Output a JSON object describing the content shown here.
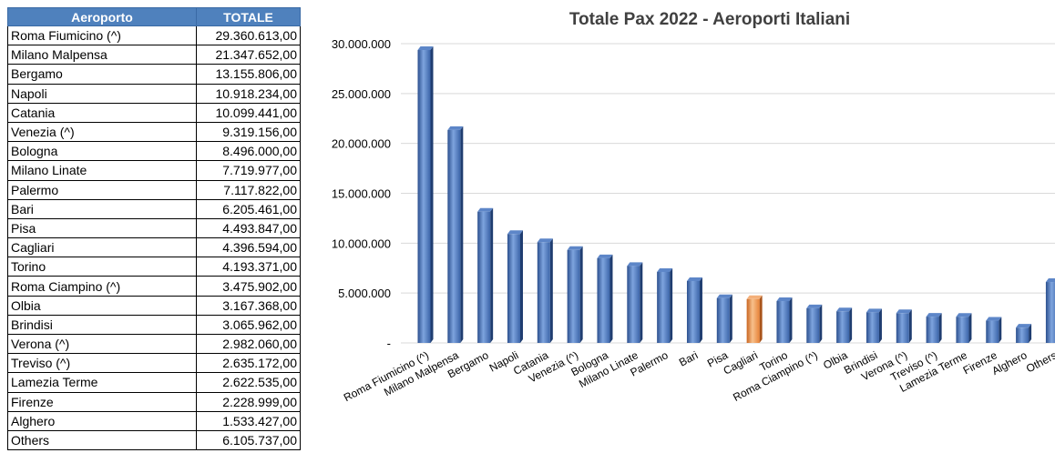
{
  "table": {
    "header_name": "Aeroporto",
    "header_value": "TOTALE",
    "value_labels": [
      "29.360.613,00",
      "21.347.652,00",
      "13.155.806,00",
      "10.918.234,00",
      "10.099.441,00",
      "9.319.156,00",
      "8.496.000,00",
      "7.719.977,00",
      "7.117.822,00",
      "6.205.461,00",
      "4.493.847,00",
      "4.396.594,00",
      "4.193.371,00",
      "3.475.902,00",
      "3.167.368,00",
      "3.065.962,00",
      "2.982.060,00",
      "2.635.172,00",
      "2.622.535,00",
      "2.228.999,00",
      "1.533.427,00",
      "6.105.737,00"
    ]
  },
  "colors": {
    "bar": "#3b64a8",
    "highlight": "#e8843a",
    "header": "#4f81bd"
  },
  "chart_data": {
    "type": "bar",
    "title": "Totale Pax 2022 - Aeroporti Italiani",
    "categories": [
      "Roma Fiumicino (^)",
      "Milano Malpensa",
      "Bergamo",
      "Napoli",
      "Catania",
      "Venezia (^)",
      "Bologna",
      "Milano Linate",
      "Palermo",
      "Bari",
      "Pisa",
      "Cagliari",
      "Torino",
      "Roma Ciampino (^)",
      "Olbia",
      "Brindisi",
      "Verona (^)",
      "Treviso (^)",
      "Lamezia Terme",
      "Firenze",
      "Alghero",
      "Others"
    ],
    "values": [
      29360613,
      21347652,
      13155806,
      10918234,
      10099441,
      9319156,
      8496000,
      7719977,
      7117822,
      6205461,
      4493847,
      4396594,
      4193371,
      3475902,
      3167368,
      3065962,
      2982060,
      2635172,
      2622535,
      2228999,
      1533427,
      6105737
    ],
    "highlighted_category": "Cagliari",
    "ylim": [
      0,
      30000000
    ],
    "yticks": [
      0,
      5000000,
      10000000,
      15000000,
      20000000,
      25000000,
      30000000
    ],
    "ytick_labels": [
      "-",
      "5.000.000",
      "10.000.000",
      "15.000.000",
      "20.000.000",
      "25.000.000",
      "30.000.000"
    ],
    "grid": true,
    "legend": "none"
  }
}
